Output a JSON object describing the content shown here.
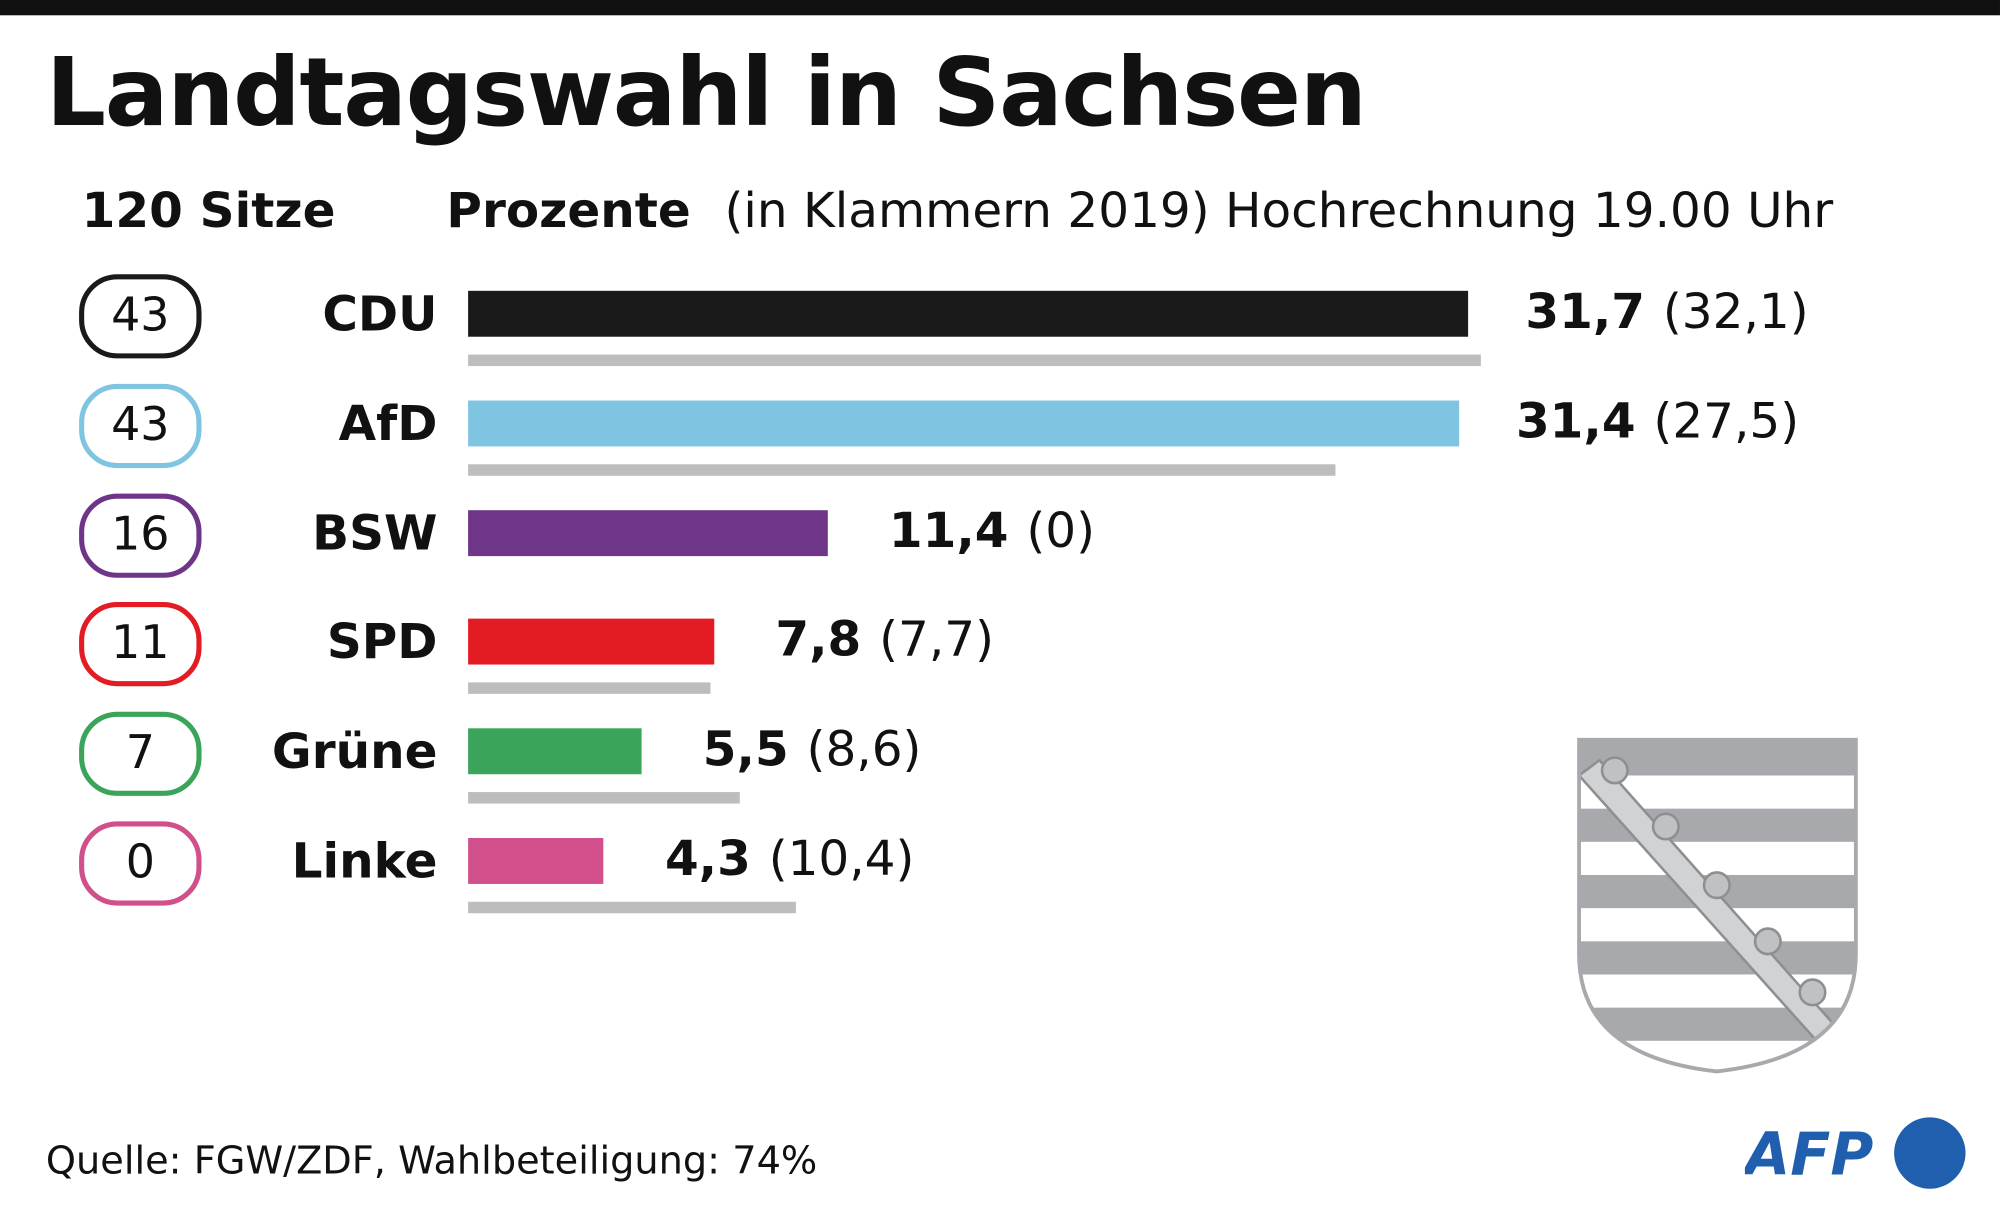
{
  "title": "Landtagswahl in Sachsen",
  "subheader": {
    "seats_label": "120 Sitze",
    "percent_label": "Prozente",
    "note": "(in Klammern 2019) Hochrechnung 19.00 Uhr"
  },
  "source": "Quelle: FGW/ZDF, Wahlbeteiligung: 74%",
  "logo": "AFP",
  "chart_data": {
    "type": "bar",
    "orientation": "horizontal",
    "title": "Landtagswahl in Sachsen",
    "categories": [
      "CDU",
      "AfD",
      "BSW",
      "SPD",
      "Grüne",
      "Linke"
    ],
    "series": [
      {
        "name": "Prozente",
        "values": [
          31.7,
          31.4,
          11.4,
          7.8,
          5.5,
          4.3
        ],
        "labels": [
          "31,7",
          "31,4",
          "11,4",
          "7,8",
          "5,5",
          "4,3"
        ]
      },
      {
        "name": "2019",
        "values": [
          32.1,
          27.5,
          0,
          7.7,
          8.6,
          10.4
        ],
        "labels": [
          "(32,1)",
          "(27,5)",
          "(0)",
          "(7,7)",
          "(8,6)",
          "(10,4)"
        ],
        "color": "#bdbdbd"
      }
    ],
    "seats": [
      "43",
      "43",
      "16",
      "11",
      "7",
      "0"
    ],
    "colors": [
      "#1a1a1a",
      "#7fc4e0",
      "#6e3589",
      "#e31b23",
      "#3aa55a",
      "#d14f8a"
    ],
    "grid": false
  },
  "colors": {
    "logo_blue": "#1f5fad",
    "crest_gray": "#a7a9ac"
  }
}
